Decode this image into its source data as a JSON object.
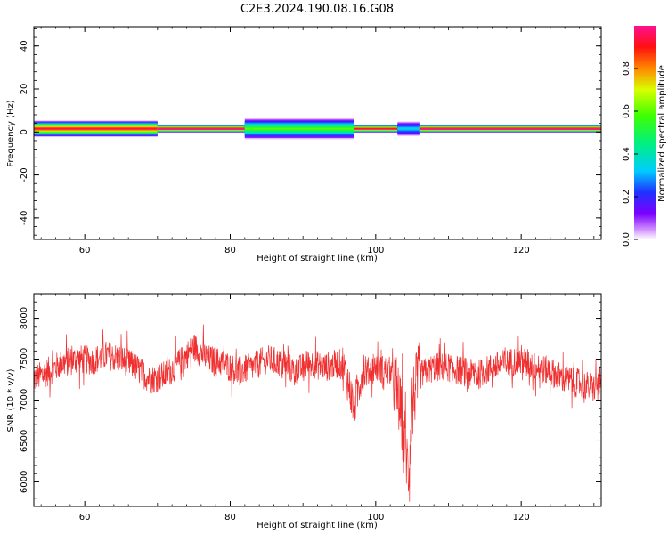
{
  "figure_title": "C2E3.2024.190.08.16.G08",
  "colors": {
    "snr_line": "#f03030",
    "axes": "#000000",
    "background": "#ffffff"
  },
  "chart_data": [
    {
      "type": "heatmap",
      "title": "",
      "xlabel": "Height of straight line (km)",
      "ylabel": "Frequency (Hz)",
      "xlim": [
        53,
        131
      ],
      "ylim": [
        -50,
        49
      ],
      "xticks": [
        60,
        80,
        100,
        120
      ],
      "yticks": [
        -40,
        -20,
        0,
        20,
        40
      ],
      "grid": false,
      "colorbar": {
        "label": "Normalized spectral amplitude",
        "range": [
          0,
          1
        ],
        "ticks": [
          0.0,
          0.2,
          0.4,
          0.6,
          0.8
        ],
        "colormap": "rainbow (white-purple-blue-cyan-green-yellow-red-magenta)"
      },
      "band": {
        "center_freq_hz": 1.5,
        "segments": [
          {
            "from_km": 53,
            "to_km": 70,
            "peak": 0.95,
            "halo_width_hz": 3.5
          },
          {
            "from_km": 70,
            "to_km": 82,
            "peak": 1.0,
            "halo_width_hz": 1.5
          },
          {
            "from_km": 82,
            "to_km": 97,
            "peak": 0.6,
            "halo_width_hz": 4.5
          },
          {
            "from_km": 97,
            "to_km": 103,
            "peak": 0.95,
            "halo_width_hz": 1.5
          },
          {
            "from_km": 103,
            "to_km": 106,
            "peak": 0.35,
            "halo_width_hz": 3.0
          },
          {
            "from_km": 106,
            "to_km": 131,
            "peak": 1.0,
            "halo_width_hz": 1.5
          }
        ]
      }
    },
    {
      "type": "line",
      "title": "",
      "xlabel": "Height of straight line (km)",
      "ylabel": "SNR (10 * v/v)",
      "xlim": [
        53,
        131
      ],
      "ylim": [
        5700,
        8300
      ],
      "xticks": [
        60,
        80,
        100,
        120
      ],
      "yticks": [
        6000,
        6500,
        7000,
        7500,
        8000
      ],
      "grid": false,
      "series": [
        {
          "x": [
            53,
            55,
            57,
            59,
            61,
            63,
            65,
            67,
            69,
            71,
            73,
            75,
            77,
            79,
            81,
            83,
            85,
            87,
            89,
            91,
            93,
            95,
            96,
            97,
            98,
            100,
            102,
            103,
            104,
            104.5,
            105,
            106,
            108,
            110,
            112,
            114,
            116,
            118,
            120,
            122,
            124,
            126,
            128,
            130,
            131
          ],
          "y": [
            7250,
            7350,
            7450,
            7500,
            7480,
            7550,
            7500,
            7400,
            7250,
            7300,
            7450,
            7650,
            7500,
            7450,
            7350,
            7400,
            7500,
            7450,
            7350,
            7450,
            7400,
            7450,
            7300,
            6900,
            7300,
            7400,
            7350,
            7100,
            6500,
            6100,
            7000,
            7300,
            7400,
            7400,
            7350,
            7300,
            7400,
            7450,
            7500,
            7400,
            7350,
            7250,
            7200,
            7150,
            7250
          ]
        }
      ]
    }
  ]
}
